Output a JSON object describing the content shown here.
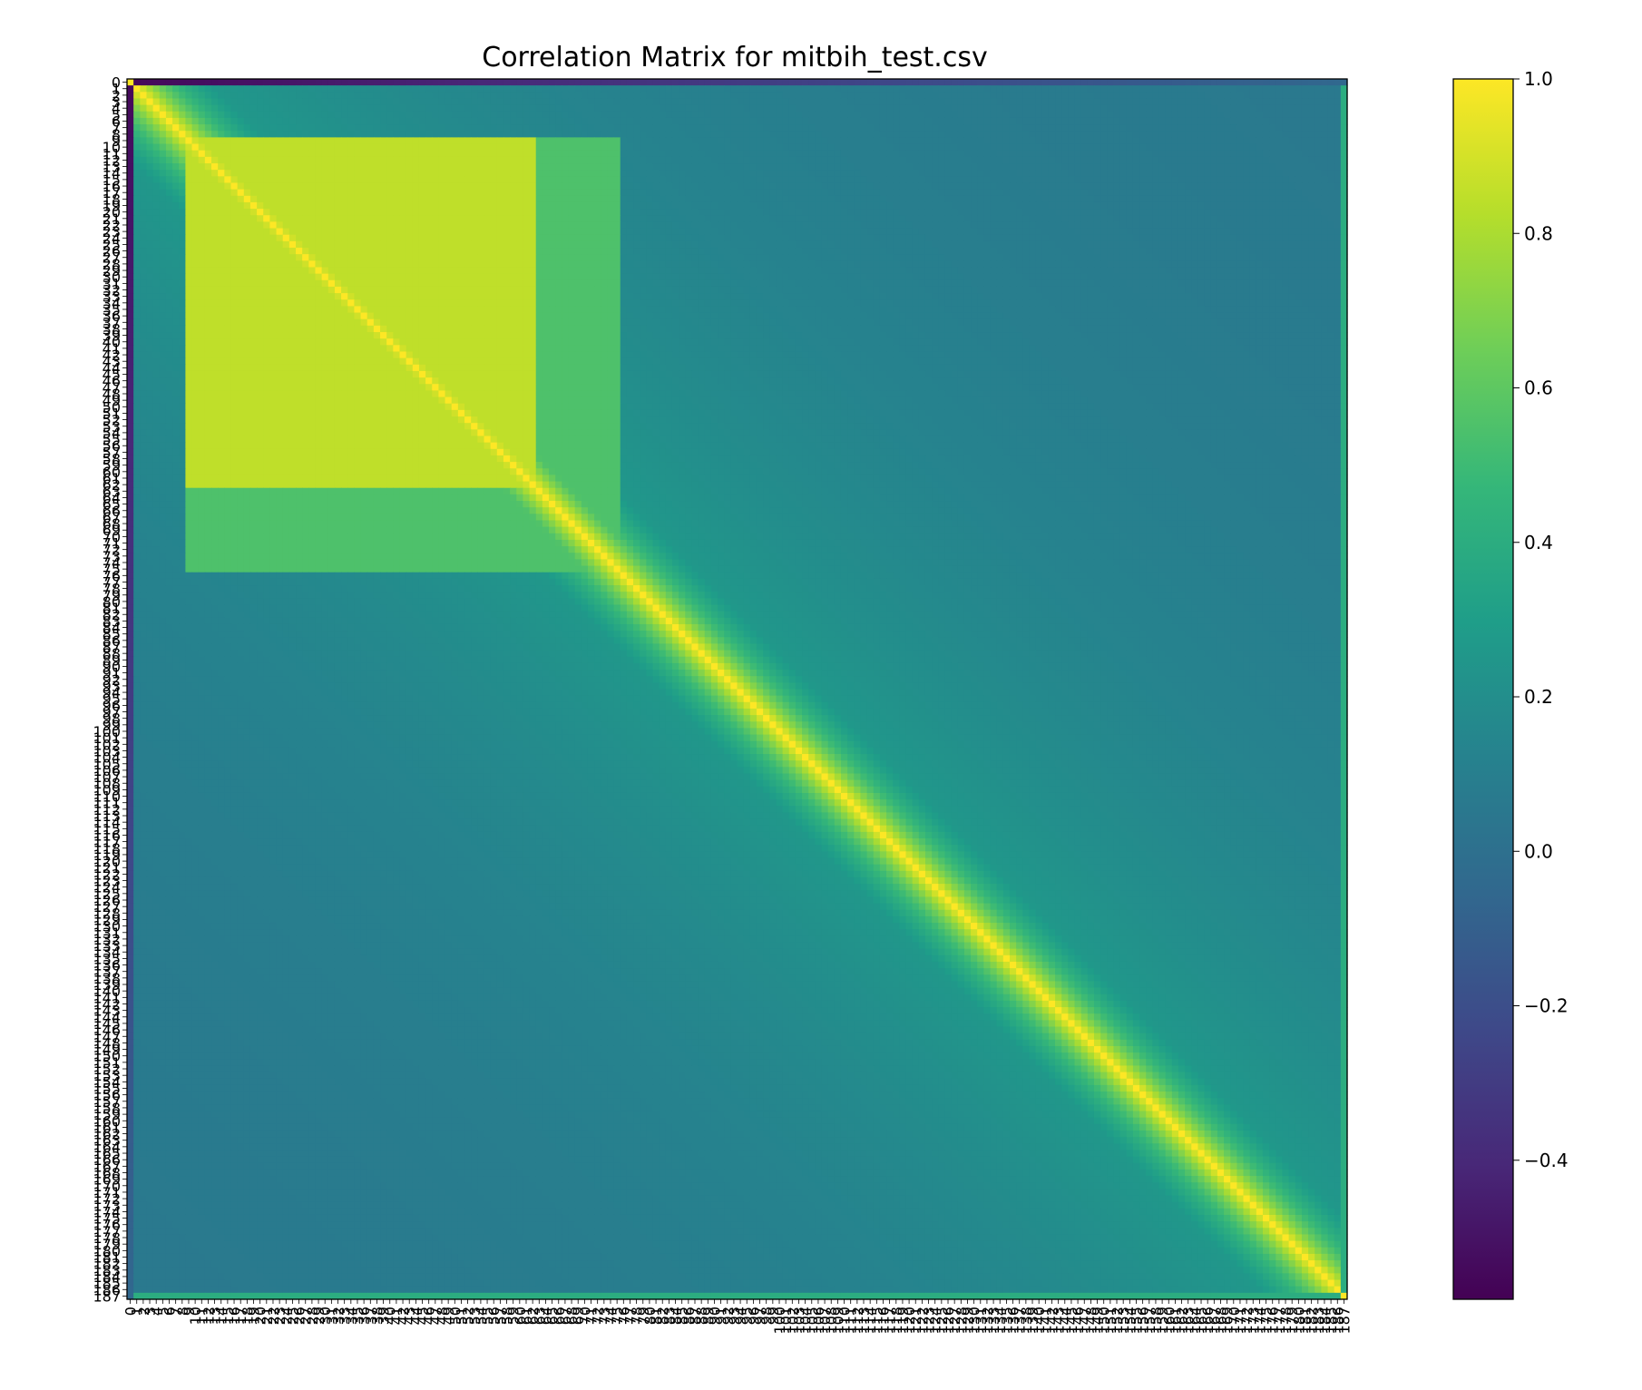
{
  "chart_data": {
    "type": "heatmap",
    "title": "Correlation Matrix for mitbih_test.csv",
    "xlabel": "",
    "ylabel": "",
    "matrix_size": 188,
    "row_labels_range": [
      0,
      187
    ],
    "col_labels_range": [
      0,
      187
    ],
    "tick_every": 1,
    "value_range": [
      -0.58,
      1.0
    ],
    "colormap": "viridis",
    "colormap_stops": [
      "#440154",
      "#482878",
      "#3e4989",
      "#31688e",
      "#26828e",
      "#1f9e89",
      "#35b779",
      "#6ece58",
      "#b5de2b",
      "#fde725"
    ],
    "colorbar": {
      "ticks": [
        1.0,
        0.8,
        0.6,
        0.4,
        0.2,
        0.0,
        -0.2,
        -0.4
      ],
      "tick_labels": [
        "1.0",
        "0.8",
        "0.6",
        "0.4",
        "0.2",
        "0.0",
        "−0.2",
        "−0.4"
      ]
    },
    "structure": {
      "diagonal": 1.0,
      "background": 0.05,
      "row0_correlation_range": [
        -0.55,
        -0.05
      ],
      "last_row_correlation": 0.4,
      "high_correlation_block": {
        "rows": [
          9,
          62
        ],
        "cols": [
          9,
          62
        ],
        "value": 0.85
      },
      "mid_correlation_block": {
        "rows": [
          9,
          75
        ],
        "cols": [
          9,
          75
        ],
        "value": 0.55
      },
      "band_width": 8
    }
  }
}
